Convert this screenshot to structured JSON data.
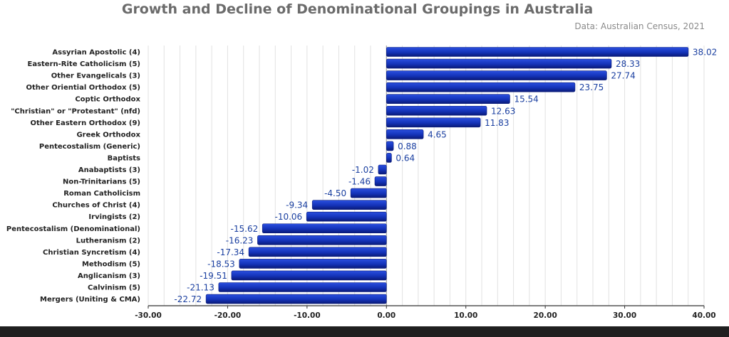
{
  "chart_data": {
    "type": "bar",
    "orientation": "horizontal",
    "title": "Growth and Decline of Denominational Groupings in Australia",
    "subtitle": "Data: Australian Census, 2021",
    "xlabel": "",
    "ylabel": "",
    "xlim": [
      -30,
      40
    ],
    "xticks": [
      -30,
      -20,
      -10,
      0,
      10,
      20,
      30,
      40
    ],
    "xtick_labels": [
      "-30.00",
      "-20.00",
      "-10.00",
      "0.00",
      "10.00",
      "20.00",
      "30.00",
      "40.00"
    ],
    "grid": "vertical",
    "categories": [
      "Assyrian Apostolic (4)",
      "Eastern-Rite Catholicism (5)",
      "Other Evangelicals (3)",
      "Other Oriential Orthodox (5)",
      "Coptic Orthodox",
      "\"Christian\" or \"Protestant\" (nfd)",
      "Other Eastern Orthodox (9)",
      "Greek Orthodox",
      "Pentecostalism (Generic)",
      "Baptists",
      "Anabaptists (3)",
      "Non-Trinitarians (5)",
      "Roman Catholicism",
      "Churches of Christ (4)",
      "Irvingists (2)",
      "Pentecostalism (Denominational)",
      "Lutheranism (2)",
      "Christian Syncretism (4)",
      "Methodism (5)",
      "Anglicanism (3)",
      "Calvinism (5)",
      "Mergers (Uniting & CMA)"
    ],
    "values": [
      38.02,
      28.33,
      27.74,
      23.75,
      15.54,
      12.63,
      11.83,
      4.65,
      0.88,
      0.64,
      -1.02,
      -1.46,
      -4.5,
      -9.34,
      -10.06,
      -15.62,
      -16.23,
      -17.34,
      -18.53,
      -19.51,
      -21.13,
      -22.72
    ],
    "value_labels": [
      "38.02",
      "28.33",
      "27.74",
      "23.75",
      "15.54",
      "12.63",
      "11.83",
      "4.65",
      "0.88",
      "0.64",
      "-1.02",
      "-1.46",
      "-4.50",
      "-9.34",
      "-10.06",
      "-15.62",
      "-16.23",
      "-17.34",
      "-18.53",
      "-19.51",
      "-21.13",
      "-22.72"
    ],
    "colors": {
      "bar": "#1433b8",
      "bar_dark": "#0b1d7a",
      "value_label": "#1a3fa0",
      "grid": "#e2e2e2"
    }
  }
}
